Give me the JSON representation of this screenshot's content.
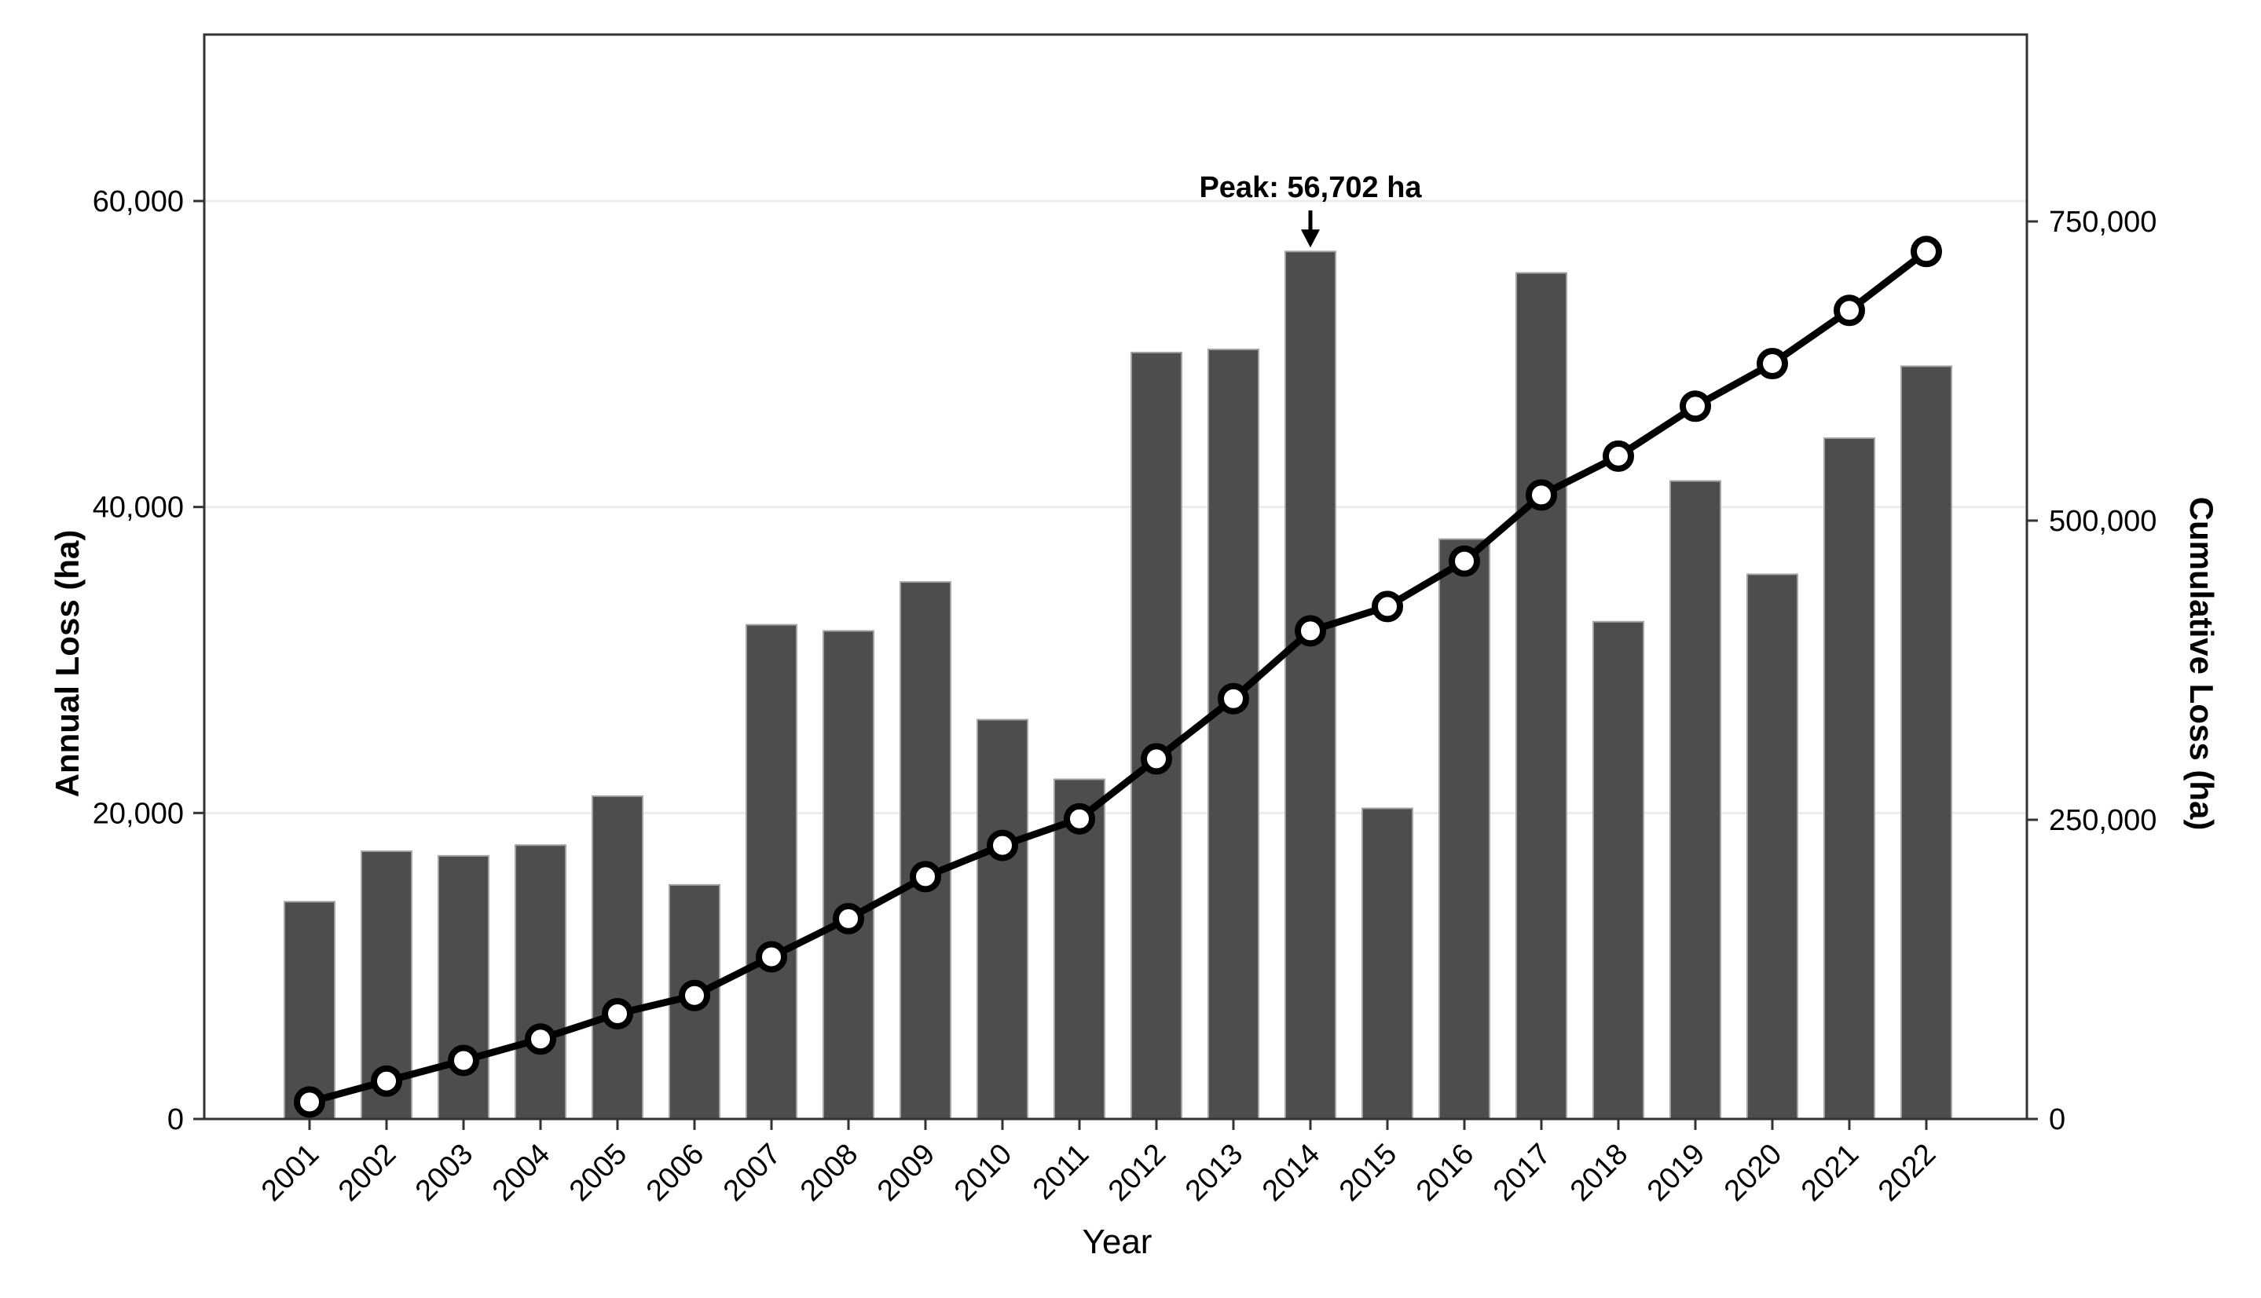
{
  "page": {
    "background": "#ffffff"
  },
  "chart_data": {
    "type": "bar",
    "title": "",
    "categories": [
      "2001",
      "2002",
      "2003",
      "2004",
      "2005",
      "2006",
      "2007",
      "2008",
      "2009",
      "2010",
      "2011",
      "2012",
      "2013",
      "2014",
      "2015",
      "2016",
      "2017",
      "2018",
      "2019",
      "2020",
      "2021",
      "2022"
    ],
    "series": [
      {
        "name": "Annual Loss (ha)",
        "type": "bar",
        "axis": "left",
        "values": [
          14200,
          17500,
          17200,
          17900,
          21100,
          15300,
          32300,
          31900,
          35100,
          26100,
          22200,
          50100,
          50300,
          56702,
          20300,
          37900,
          55300,
          32500,
          41700,
          35600,
          44500,
          49200
        ]
      },
      {
        "name": "Cumulative Loss (ha)",
        "type": "line",
        "axis": "right",
        "values": [
          14200,
          31700,
          48900,
          66800,
          87900,
          103200,
          135500,
          167400,
          202500,
          228600,
          250800,
          300900,
          351200,
          407902,
          428202,
          466102,
          521402,
          553902,
          595602,
          631202,
          675702,
          724902
        ]
      }
    ],
    "x_axis": {
      "title": "Year"
    },
    "left_axis": {
      "title": "Annual Loss (ha)",
      "range": [
        0,
        71500
      ],
      "ticks": [
        {
          "value": 0,
          "label": "0"
        },
        {
          "value": 20000,
          "label": "20,000"
        },
        {
          "value": 40000,
          "label": "40,000"
        },
        {
          "value": 60000,
          "label": "60,000"
        }
      ]
    },
    "right_axis": {
      "title": "Cumulative Loss (ha)",
      "range": [
        0,
        910000
      ],
      "ticks": [
        {
          "value": 0,
          "label": "0"
        },
        {
          "value": 250000,
          "label": "250,000"
        },
        {
          "value": 500000,
          "label": "500,000"
        },
        {
          "value": 750000,
          "label": "750,000"
        }
      ]
    },
    "annotation": {
      "text": "Peak: 56,702 ha",
      "category": "2014",
      "value": 56702
    },
    "grid": {
      "horizontal": true,
      "vertical": false
    },
    "legend": "none"
  },
  "colors": {
    "bar_fill": "#4d4d4d",
    "bar_edge": "#a3a3a3",
    "line": "#000000",
    "marker_fill": "#ffffff",
    "marker_stroke": "#000000",
    "gridline": "#ececec",
    "panel_border": "#333333",
    "tick_mark": "#333333",
    "text": "#000000"
  }
}
